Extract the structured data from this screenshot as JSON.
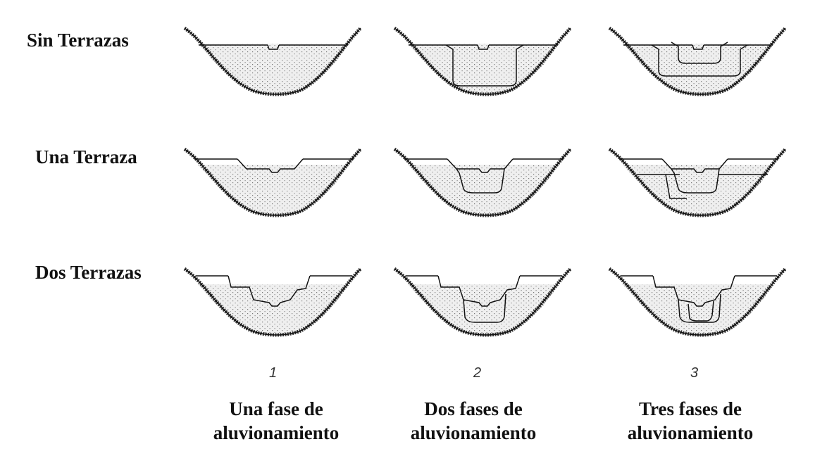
{
  "rows": [
    {
      "label": "Sin Terrazas"
    },
    {
      "label": "Una Terraza"
    },
    {
      "label": "Dos Terrazas"
    }
  ],
  "columns": [
    {
      "number": "1",
      "line1": "Una fase de",
      "line2": "aluvionamiento"
    },
    {
      "number": "2",
      "line1": "Dos fases de",
      "line2": "aluvionamiento"
    },
    {
      "number": "3",
      "line1": "Tres fases de",
      "line2": "aluvionamiento"
    }
  ]
}
